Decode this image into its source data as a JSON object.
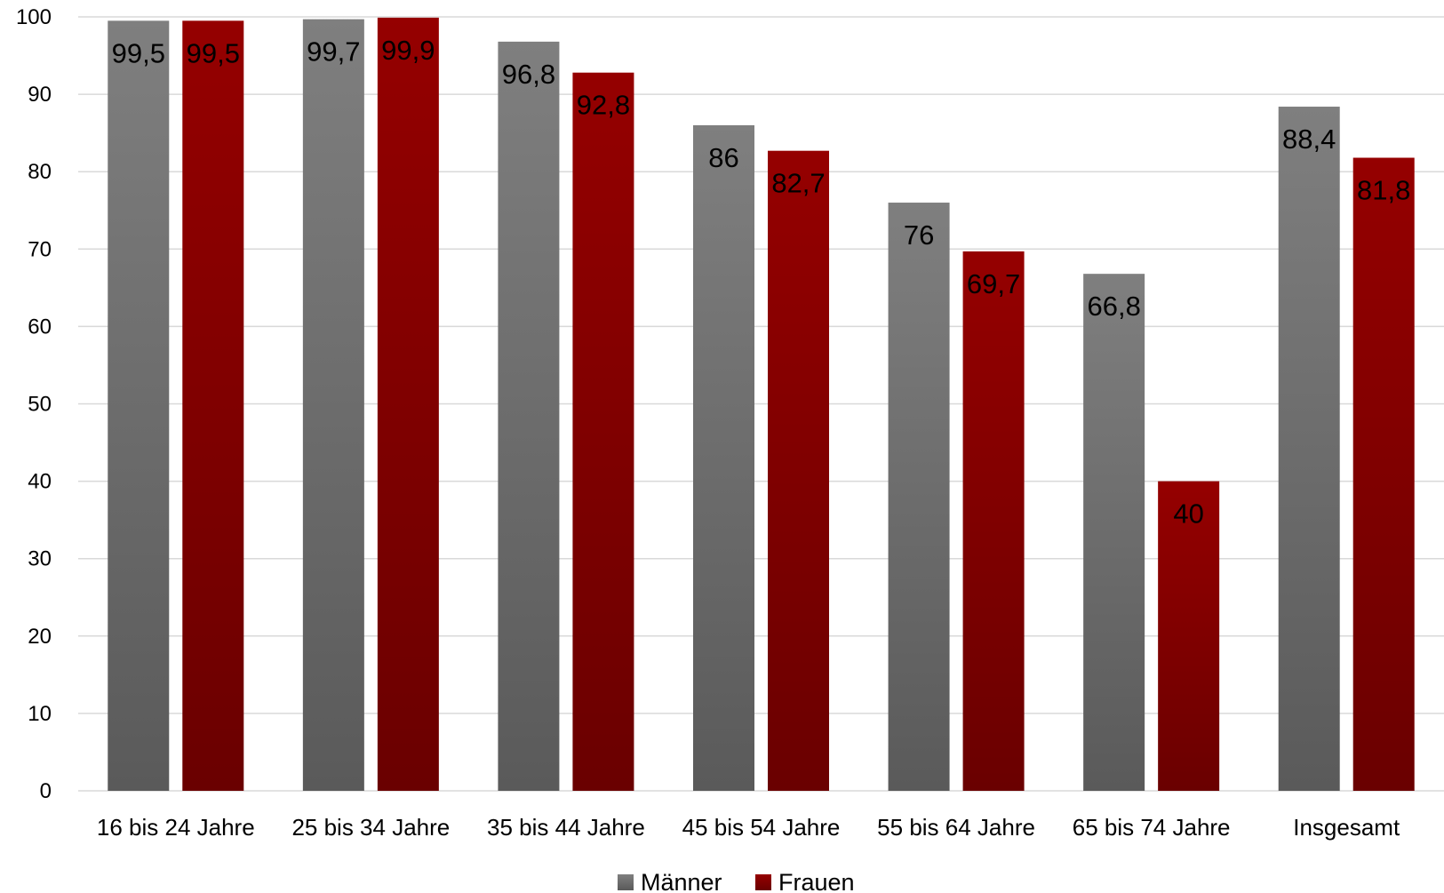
{
  "chart_data": {
    "type": "bar",
    "categories": [
      "16 bis 24 Jahre",
      "25 bis 34 Jahre",
      "35 bis 44 Jahre",
      "45 bis 54 Jahre",
      "55 bis 64 Jahre",
      "65 bis 74 Jahre",
      "Insgesamt"
    ],
    "series": [
      {
        "name": "Männer",
        "color": "#6f6f6f",
        "values": [
          99.5,
          99.7,
          96.8,
          86,
          76,
          66.8,
          88.4
        ],
        "labels": [
          "99,5",
          "99,7",
          "96,8",
          "86",
          "76",
          "66,8",
          "88,4"
        ]
      },
      {
        "name": "Frauen",
        "color": "#8b0000",
        "values": [
          99.5,
          99.9,
          92.8,
          82.7,
          69.7,
          40,
          81.8
        ],
        "labels": [
          "99,5",
          "99,9",
          "92,8",
          "82,7",
          "69,7",
          "40",
          "81,8"
        ]
      }
    ],
    "ylim": [
      0,
      100
    ],
    "yticks": [
      "0",
      "10",
      "20",
      "30",
      "40",
      "50",
      "60",
      "70",
      "80",
      "90",
      "100"
    ],
    "grid": true,
    "legend_position": "bottom"
  }
}
